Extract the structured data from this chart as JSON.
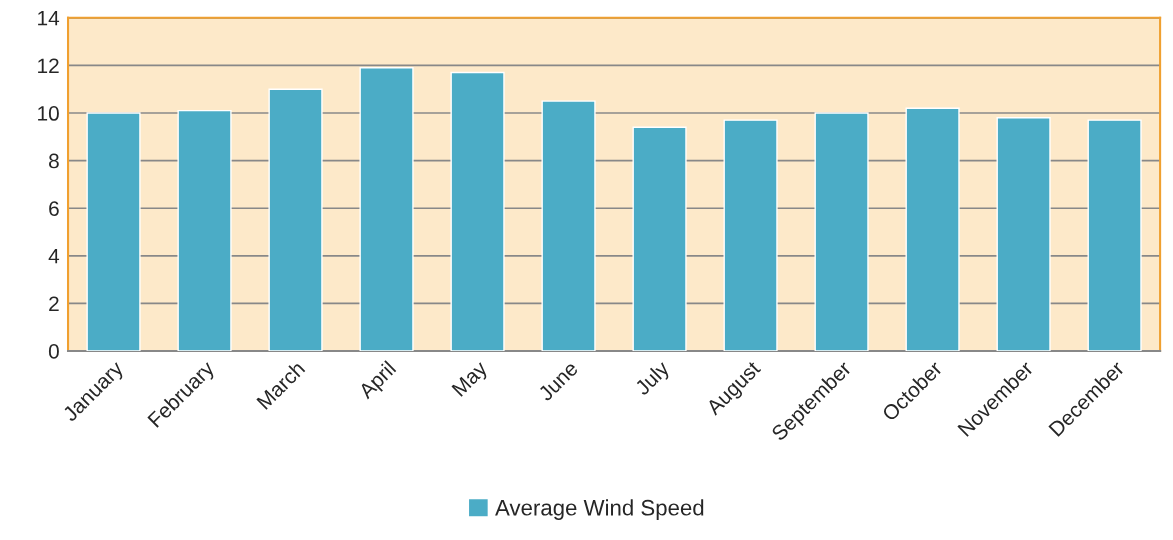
{
  "chart_data": {
    "type": "bar",
    "categories": [
      "January",
      "February",
      "March",
      "April",
      "May",
      "June",
      "July",
      "August",
      "September",
      "October",
      "November",
      "December"
    ],
    "series": [
      {
        "name": "Average Wind Speed",
        "color": "#4bacc6",
        "values": [
          10.0,
          10.1,
          11.0,
          11.9,
          11.7,
          10.5,
          9.4,
          9.7,
          10.0,
          10.2,
          9.8,
          9.7
        ]
      }
    ],
    "ylim": [
      0,
      14
    ],
    "yticks": [
      0,
      2,
      4,
      6,
      8,
      10,
      12,
      14
    ],
    "grid": "y",
    "legend": "bottom"
  }
}
